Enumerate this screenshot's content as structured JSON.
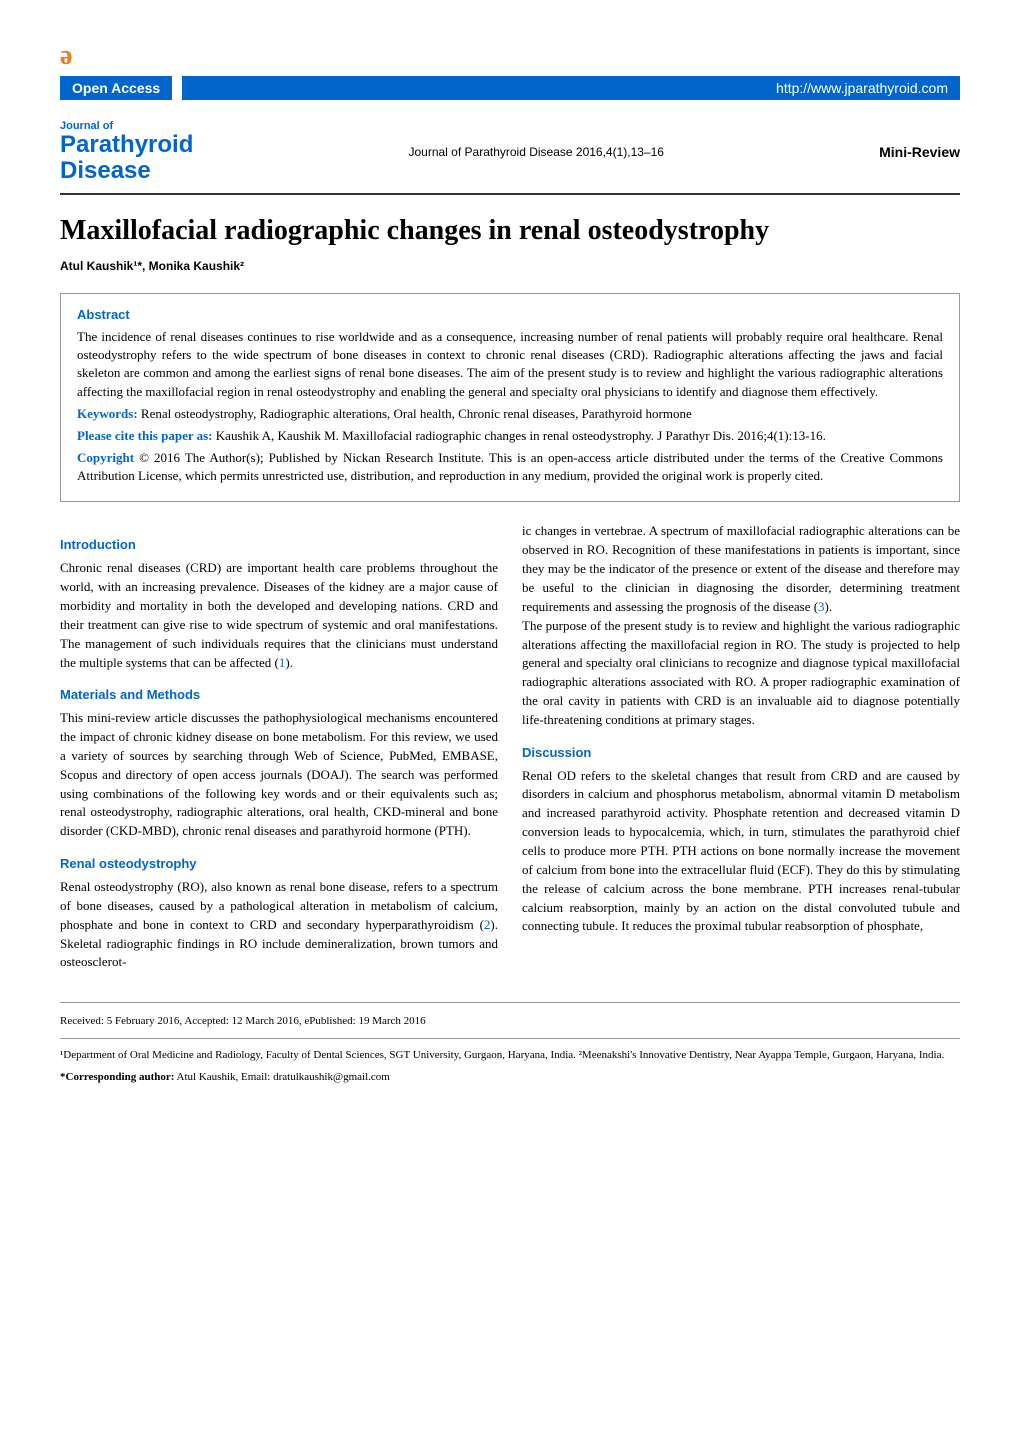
{
  "header": {
    "oa_icon": "ə",
    "open_access_label": "Open Access",
    "url": "http://www.jparathyroid.com",
    "journal_of": "Journal of",
    "journal_name_line1": "Parathyroid",
    "journal_name_line2": "Disease",
    "citation": "Journal of Parathyroid Disease 2016,4(1),13–16",
    "article_type": "Mini-Review"
  },
  "article": {
    "title": "Maxillofacial radiographic changes in renal osteodystrophy",
    "authors": "Atul Kaushik¹*, Monika Kaushik²"
  },
  "abstract": {
    "heading": "Abstract",
    "text": "The incidence of renal diseases continues to rise worldwide and as a consequence, increasing number of renal patients will probably require oral healthcare. Renal osteodystrophy refers to the wide spectrum of bone diseases in context to chronic renal diseases (CRD). Radiographic alterations affecting the jaws and facial skeleton are common and among the earliest signs of renal bone diseases. The aim of the present study is to review and highlight the various radiographic alterations affecting the maxillofacial region in renal osteodystrophy and enabling the general and specialty oral physicians to identify and diagnose them effectively.",
    "keywords_label": "Keywords:",
    "keywords": " Renal osteodystrophy, Radiographic alterations, Oral health, Chronic renal diseases, Parathyroid hormone",
    "cite_label": "Please cite this paper as:",
    "cite": " Kaushik A, Kaushik M. Maxillofacial radiographic changes in renal osteodystrophy. J Parathyr Dis. 2016;4(1):13-16.",
    "copyright_label": "Copyright",
    "copyright": " © 2016 The Author(s); Published by Nickan Research Institute. This is an open-access article distributed under the terms of the Creative Commons Attribution License, which permits unrestricted use, distribution, and reproduction in any medium, provided the original work is properly cited."
  },
  "sections": {
    "introduction": {
      "heading": "Introduction",
      "text": "Chronic renal diseases (CRD) are important health care problems throughout the world, with an increasing prevalence. Diseases of the kidney are a major cause of morbidity and mortality in both the developed and developing nations. CRD and their treatment can give rise to wide spectrum of systemic and oral manifestations. The management of such individuals requires that the clinicians must understand the multiple systems that can be affected (",
      "ref1": "1",
      "text_end": ")."
    },
    "methods": {
      "heading": "Materials and Methods",
      "text": "This mini-review article discusses the pathophysiological mechanisms encountered the impact of chronic kidney disease on bone metabolism. For this review, we used a variety of sources by searching through Web of Science, PubMed, EMBASE, Scopus and directory of open access journals (DOAJ). The search was performed using combinations of the following key words and or their equivalents such as; renal osteodystrophy, radiographic alterations, oral health, CKD-mineral and bone disorder (CKD-MBD), chronic renal diseases and parathyroid hormone (PTH)."
    },
    "renal_od": {
      "heading": "Renal osteodystrophy",
      "text_part1": "Renal osteodystrophy (RO), also known as renal bone disease, refers to a spectrum of bone diseases, caused by a pathological alteration in metabolism of calcium, phosphate and bone in context to CRD and secondary hyperparathyroidism (",
      "ref2": "2",
      "text_part2": "). Skeletal radiographic findings in RO include demineralization, brown tumors and osteosclerotic changes in vertebrae. A spectrum of maxillofacial radiographic alterations can be observed in RO. Recognition of these manifestations in patients is important, since they may be the indicator of the presence or extent of the disease and therefore may be useful to the clinician in diagnosing the disorder, determining treatment requirements and assessing the prognosis of the disease (",
      "ref3": "3",
      "text_part3": ").",
      "purpose": "The purpose of the present study is to review and highlight the various radiographic alterations affecting the maxillofacial region in RO. The study is projected to help general and specialty oral clinicians to recognize and diagnose typical maxillofacial radiographic alterations associated with RO. A proper radiographic examination of the oral cavity in patients with CRD is an invaluable aid to diagnose potentially life-threatening conditions at primary stages."
    },
    "discussion": {
      "heading": "Discussion",
      "text": "Renal OD refers to the skeletal changes that result from CRD and are caused by disorders in calcium and phosphorus metabolism, abnormal vitamin D metabolism and increased parathyroid activity. Phosphate retention and decreased vitamin D conversion leads to hypocalcemia, which, in turn, stimulates the parathyroid chief cells to produce more PTH. PTH actions on bone normally increase the movement of calcium from bone into the extracellular fluid (ECF). They do this by stimulating the release of calcium across the bone membrane. PTH increases renal-tubular calcium reabsorption, mainly by an action on the distal convoluted tubule and connecting tubule. It reduces the proximal tubular reabsorption of phosphate,"
    }
  },
  "footer": {
    "dates": "Received: 5 February 2016, Accepted: 12 March 2016, ePublished: 19 March 2016",
    "affiliations": "¹Department of Oral Medicine and Radiology, Faculty of Dental Sciences, SGT University, Gurgaon, Haryana, India. ²Meenakshi's Innovative Dentistry, Near Ayappa Temple, Gurgaon, Haryana, India.",
    "corresponding_label": "*Corresponding author:",
    "corresponding": " Atul Kaushik, Email: dratulkaushik@gmail.com"
  },
  "colors": {
    "primary_blue": "#0066cc",
    "orange": "#e67e22",
    "text": "#000000",
    "border": "#999999"
  }
}
